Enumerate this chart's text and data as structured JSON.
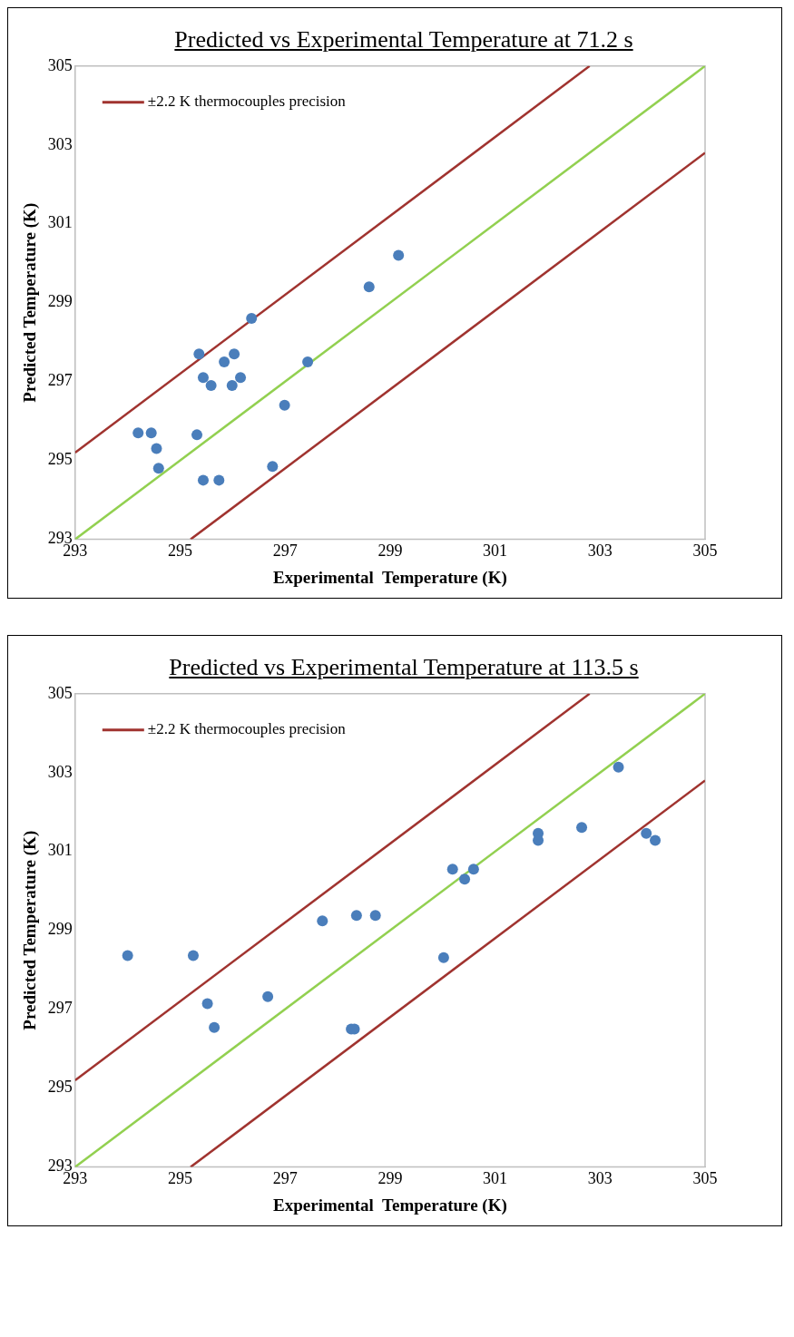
{
  "chart_data": [
    {
      "type": "scatter",
      "title": "Predicted vs Experimental  Temperature  at 71.2 s",
      "xlabel": "Experimental  Temperature (K)",
      "ylabel": "Predicted Temperature (K)",
      "xlim": [
        293,
        305
      ],
      "ylim": [
        293,
        305
      ],
      "xticks": [
        293,
        295,
        297,
        299,
        301,
        303,
        305
      ],
      "yticks": [
        293,
        295,
        297,
        299,
        301,
        303,
        305
      ],
      "grid": false,
      "legend": "top left",
      "series": [
        {
          "color": "#4a7ebb",
          "marker": "circle",
          "x": [
            299.16,
            298.6,
            296.36,
            295.36,
            296.03,
            295.84,
            297.43,
            295.44,
            296.15,
            295.59,
            295.99,
            296.99,
            294.2,
            294.45,
            295.32,
            294.55,
            294.59,
            295.44,
            295.74,
            296.76
          ],
          "values": [
            300.2,
            299.4,
            298.6,
            297.7,
            297.7,
            297.5,
            297.5,
            297.1,
            297.1,
            296.9,
            296.9,
            296.4,
            295.7,
            295.7,
            295.65,
            295.3,
            294.8,
            294.5,
            294.5,
            294.85
          ]
        },
        {
          "type": "line",
          "name": "±2.2 K thermocouples precision",
          "color": "#a0332f",
          "marker": "none",
          "x": [
            293,
            302.8
          ],
          "values": [
            295.2,
            305
          ]
        },
        {
          "type": "line",
          "color": "#92d050",
          "marker": "none",
          "x": [
            293,
            305
          ],
          "values": [
            293,
            305
          ]
        },
        {
          "type": "line",
          "color": "#a0332f",
          "marker": "none",
          "x": [
            295.2,
            305
          ],
          "values": [
            293,
            302.8
          ]
        }
      ]
    },
    {
      "type": "scatter",
      "title": "Predicted vs Experimental  Temperature  at 113.5 s",
      "xlabel": "Experimental  Temperature (K)",
      "ylabel": "Predicted Temperature (K)",
      "xlim": [
        293,
        305
      ],
      "ylim": [
        293,
        305
      ],
      "xticks": [
        293,
        295,
        297,
        299,
        301,
        303,
        305
      ],
      "yticks": [
        293,
        295,
        297,
        299,
        301,
        303,
        305
      ],
      "grid": false,
      "legend": "top left",
      "series": [
        {
          "color": "#4a7ebb",
          "marker": "circle",
          "x": [
            294.0,
            295.25,
            295.52,
            295.65,
            296.67,
            297.71,
            298.36,
            298.72,
            298.26,
            298.32,
            300.02,
            300.19,
            300.42,
            300.59,
            301.82,
            301.82,
            302.65,
            303.35,
            303.88,
            304.05
          ],
          "values": [
            298.36,
            298.36,
            297.14,
            296.54,
            297.32,
            299.24,
            299.38,
            299.38,
            296.5,
            296.5,
            298.31,
            300.55,
            300.3,
            300.55,
            301.46,
            301.28,
            301.61,
            303.14,
            301.46,
            301.28
          ]
        },
        {
          "type": "line",
          "name": "±2.2 K thermocouples precision",
          "color": "#a0332f",
          "marker": "none",
          "x": [
            293,
            302.8
          ],
          "values": [
            295.2,
            305
          ]
        },
        {
          "type": "line",
          "color": "#92d050",
          "marker": "none",
          "x": [
            293,
            305
          ],
          "values": [
            293,
            305
          ]
        },
        {
          "type": "line",
          "color": "#a0332f",
          "marker": "none",
          "x": [
            295.2,
            305
          ],
          "values": [
            293,
            302.8
          ]
        }
      ]
    }
  ]
}
